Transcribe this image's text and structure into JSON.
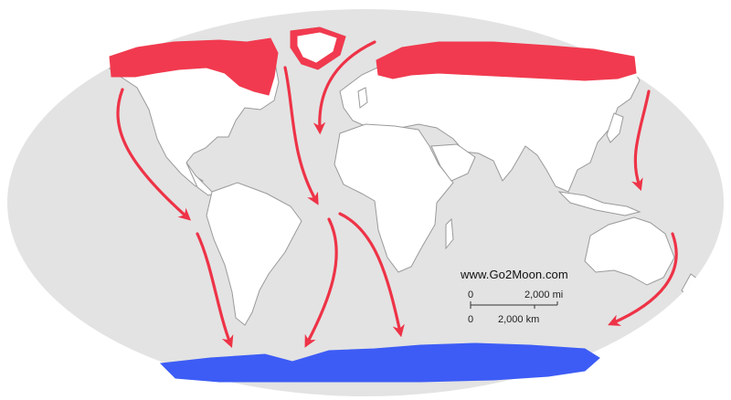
{
  "watermark": "www.Go2Moon.com",
  "scale": {
    "mi_start": "0",
    "mi_end": "2,000 mi",
    "km_start": "0",
    "km_end": "2,000 km"
  },
  "colors": {
    "ocean": "#e3e3e3",
    "land": "#ffffff",
    "coast": "#9a9a9a",
    "arctic_region": "#f13a4f",
    "antarctica": "#3d5cf5",
    "arrow": "#ee3347"
  },
  "icons": [
    "migration-arrow"
  ]
}
